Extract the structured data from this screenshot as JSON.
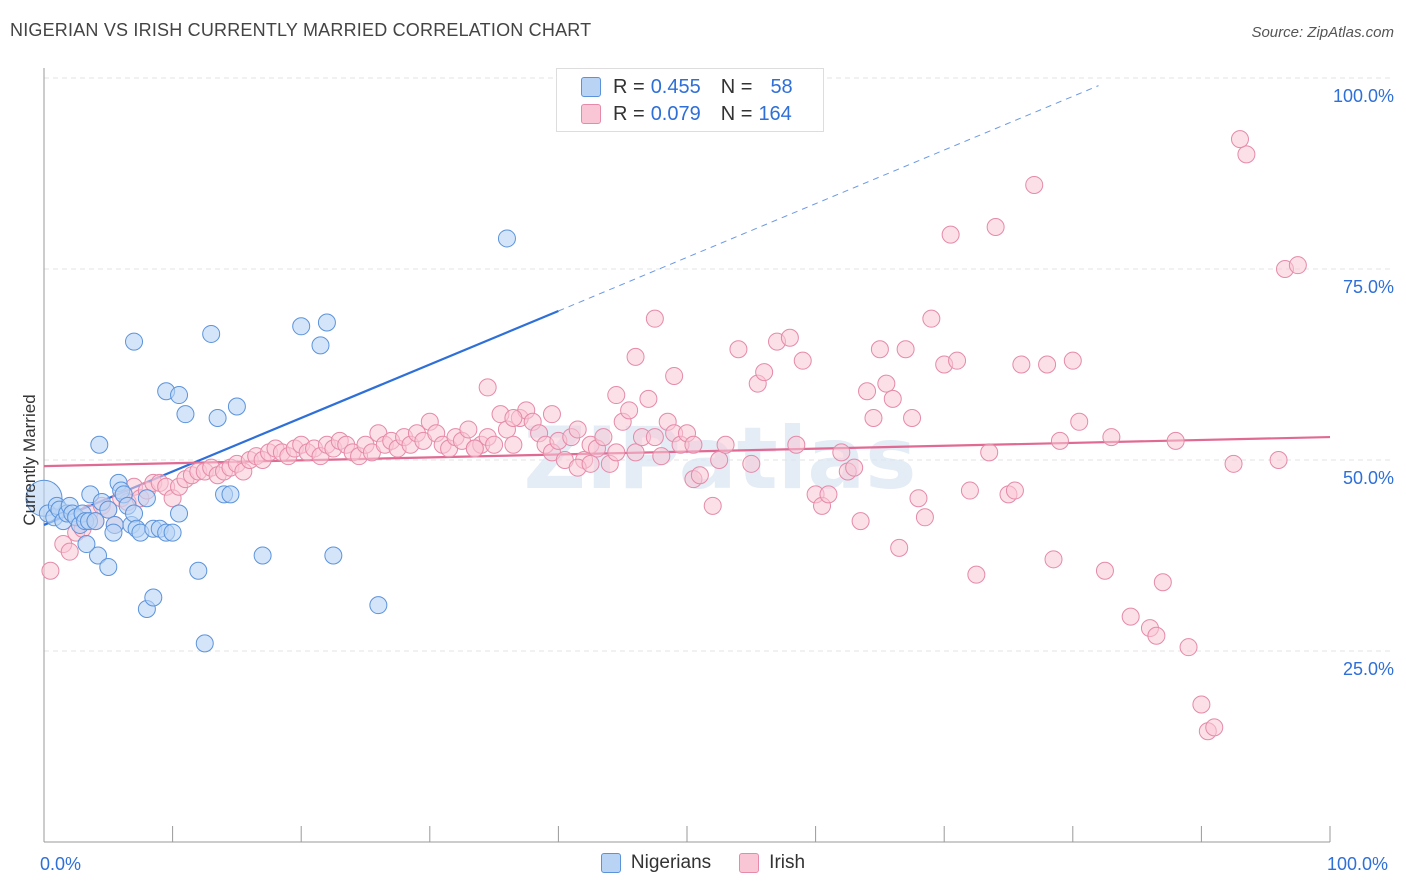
{
  "title": "NIGERIAN VS IRISH CURRENTLY MARRIED CORRELATION CHART",
  "source": "Source: ZipAtlas.com",
  "colors": {
    "nigerians_fill": "#b9d3f5",
    "nigerians_stroke": "#5b93db",
    "nigerians_line": "#2e6fd8",
    "irish_fill": "#f9c6d5",
    "irish_stroke": "#e58aa8",
    "irish_line": "#e06a93",
    "accent_text": "#2e6fd8"
  },
  "legend_top": [
    {
      "r_label": "R =",
      "r_value": "0.455",
      "n_label": "N =",
      "n_value": "58"
    },
    {
      "r_label": "R =",
      "r_value": "0.079",
      "n_label": "N =",
      "n_value": "164"
    }
  ],
  "chart_data": {
    "type": "scatter",
    "title": "NIGERIAN VS IRISH CURRENTLY MARRIED CORRELATION CHART",
    "xlabel": "",
    "ylabel": "Currently Married",
    "xlim": [
      0,
      100
    ],
    "ylim": [
      0,
      100
    ],
    "x_tick_labels": [
      "0.0%",
      "100.0%"
    ],
    "y_tick_labels": [
      "25.0%",
      "50.0%",
      "75.0%",
      "100.0%"
    ],
    "y_ticks": [
      25,
      50,
      75,
      100
    ],
    "grid": true,
    "legend_placement": "bottom",
    "watermark": "ZIPatlas",
    "series": [
      {
        "name": "Nigerians",
        "R": 0.455,
        "N": 58,
        "trend": {
          "x": [
            0,
            40
          ],
          "y": [
            41.5,
            69.5
          ],
          "extended_to": [
            82,
            99
          ]
        },
        "points": [
          [
            0,
            45
          ],
          [
            0.3,
            43
          ],
          [
            0.8,
            42.5
          ],
          [
            1.0,
            44
          ],
          [
            1.2,
            43.5
          ],
          [
            1.5,
            42
          ],
          [
            1.8,
            43
          ],
          [
            2.0,
            44
          ],
          [
            2.2,
            43
          ],
          [
            2.5,
            42.5
          ],
          [
            2.8,
            41.5
          ],
          [
            3.0,
            43
          ],
          [
            3.2,
            42
          ],
          [
            3.5,
            42
          ],
          [
            3.6,
            45.5
          ],
          [
            4.0,
            42
          ],
          [
            4.2,
            37.5
          ],
          [
            4.5,
            44.5
          ],
          [
            5.0,
            43.5
          ],
          [
            5.5,
            41.5
          ],
          [
            3.3,
            39
          ],
          [
            4.3,
            52
          ],
          [
            5.0,
            36
          ],
          [
            5.4,
            40.5
          ],
          [
            5.8,
            47
          ],
          [
            6.0,
            46
          ],
          [
            6.2,
            45.5
          ],
          [
            6.5,
            44
          ],
          [
            6.8,
            41.5
          ],
          [
            7.0,
            43
          ],
          [
            7.2,
            41
          ],
          [
            7.5,
            40.5
          ],
          [
            8.0,
            45
          ],
          [
            8.5,
            41
          ],
          [
            9.0,
            41
          ],
          [
            9.5,
            40.5
          ],
          [
            10.0,
            40.5
          ],
          [
            10.5,
            43
          ],
          [
            8.0,
            30.5
          ],
          [
            8.5,
            32
          ],
          [
            9.5,
            59
          ],
          [
            10.5,
            58.5
          ],
          [
            11.0,
            56
          ],
          [
            12.0,
            35.5
          ],
          [
            12.5,
            26
          ],
          [
            13.0,
            66.5
          ],
          [
            13.5,
            55.5
          ],
          [
            14.0,
            45.5
          ],
          [
            14.5,
            45.5
          ],
          [
            15.0,
            57
          ],
          [
            17.0,
            37.5
          ],
          [
            20.0,
            67.5
          ],
          [
            21.5,
            65
          ],
          [
            22.0,
            68
          ],
          [
            22.5,
            37.5
          ],
          [
            26.0,
            31
          ],
          [
            36.0,
            79
          ],
          [
            7.0,
            65.5
          ]
        ]
      },
      {
        "name": "Irish",
        "R": 0.079,
        "N": 164,
        "trend": {
          "x": [
            0,
            100
          ],
          "y": [
            49.2,
            53
          ]
        },
        "points": [
          [
            0.5,
            35.5
          ],
          [
            1.5,
            39
          ],
          [
            2.0,
            38
          ],
          [
            2.5,
            40.5
          ],
          [
            3.0,
            41
          ],
          [
            3.5,
            43
          ],
          [
            4.0,
            42
          ],
          [
            4.5,
            44
          ],
          [
            5.0,
            43.5
          ],
          [
            5.5,
            41.5
          ],
          [
            6.0,
            45
          ],
          [
            6.5,
            44.5
          ],
          [
            7.0,
            46.5
          ],
          [
            7.5,
            45
          ],
          [
            8.0,
            46
          ],
          [
            8.5,
            47
          ],
          [
            9.0,
            47
          ],
          [
            9.5,
            46.5
          ],
          [
            10.0,
            45
          ],
          [
            10.5,
            46.5
          ],
          [
            11.0,
            47.5
          ],
          [
            11.5,
            48
          ],
          [
            12.0,
            48.5
          ],
          [
            12.5,
            48.5
          ],
          [
            13.0,
            49
          ],
          [
            13.5,
            48
          ],
          [
            14.0,
            48.5
          ],
          [
            14.5,
            49
          ],
          [
            15.0,
            49.5
          ],
          [
            15.5,
            48.5
          ],
          [
            16.0,
            50
          ],
          [
            16.5,
            50.5
          ],
          [
            17.0,
            50
          ],
          [
            17.5,
            51
          ],
          [
            18.0,
            51.5
          ],
          [
            18.5,
            51
          ],
          [
            19.0,
            50.5
          ],
          [
            19.5,
            51.5
          ],
          [
            20.0,
            52
          ],
          [
            20.5,
            51
          ],
          [
            21.0,
            51.5
          ],
          [
            21.5,
            50.5
          ],
          [
            22.0,
            52
          ],
          [
            22.5,
            51.5
          ],
          [
            23.0,
            52.5
          ],
          [
            23.5,
            52
          ],
          [
            24.0,
            51
          ],
          [
            24.5,
            50.5
          ],
          [
            25.0,
            52
          ],
          [
            25.5,
            51
          ],
          [
            26.0,
            53.5
          ],
          [
            26.5,
            52
          ],
          [
            27.0,
            52.5
          ],
          [
            27.5,
            51.5
          ],
          [
            28.0,
            53
          ],
          [
            28.5,
            52
          ],
          [
            29.0,
            53.5
          ],
          [
            29.5,
            52.5
          ],
          [
            30.0,
            55
          ],
          [
            30.5,
            53.5
          ],
          [
            31.0,
            52
          ],
          [
            31.5,
            51.5
          ],
          [
            32.0,
            53
          ],
          [
            32.5,
            52.5
          ],
          [
            33.0,
            54
          ],
          [
            33.5,
            51.5
          ],
          [
            34.0,
            52
          ],
          [
            34.5,
            53
          ],
          [
            35.0,
            52
          ],
          [
            35.5,
            56
          ],
          [
            36.0,
            54
          ],
          [
            36.5,
            52
          ],
          [
            37.0,
            55.5
          ],
          [
            37.5,
            56.5
          ],
          [
            38.0,
            55
          ],
          [
            38.5,
            53.5
          ],
          [
            39.0,
            52
          ],
          [
            39.5,
            51
          ],
          [
            40.0,
            52.5
          ],
          [
            40.5,
            50
          ],
          [
            41.0,
            53
          ],
          [
            41.5,
            54
          ],
          [
            42.0,
            50
          ],
          [
            42.5,
            52
          ],
          [
            43.0,
            51.5
          ],
          [
            43.5,
            53
          ],
          [
            44.0,
            49.5
          ],
          [
            44.5,
            51
          ],
          [
            45.0,
            55
          ],
          [
            45.5,
            56.5
          ],
          [
            46.0,
            51
          ],
          [
            46.5,
            53
          ],
          [
            47.0,
            58
          ],
          [
            47.5,
            53
          ],
          [
            48.0,
            50.5
          ],
          [
            48.5,
            55
          ],
          [
            49.0,
            53.5
          ],
          [
            49.5,
            52
          ],
          [
            50.0,
            53.5
          ],
          [
            50.5,
            47.5
          ],
          [
            36.5,
            55.5
          ],
          [
            34.5,
            59.5
          ],
          [
            33.5,
            51.5
          ],
          [
            39.5,
            56
          ],
          [
            41.5,
            49
          ],
          [
            42.5,
            49.5
          ],
          [
            44.5,
            58.5
          ],
          [
            46.0,
            63.5
          ],
          [
            47.5,
            68.5
          ],
          [
            49.0,
            61
          ],
          [
            50.5,
            52
          ],
          [
            51.0,
            48
          ],
          [
            52.0,
            44
          ],
          [
            52.5,
            50
          ],
          [
            53.0,
            52
          ],
          [
            54.0,
            64.5
          ],
          [
            55.0,
            49.5
          ],
          [
            55.5,
            60
          ],
          [
            56.0,
            61.5
          ],
          [
            57.0,
            65.5
          ],
          [
            58.0,
            66
          ],
          [
            58.5,
            52
          ],
          [
            59.0,
            63
          ],
          [
            60.0,
            45.5
          ],
          [
            60.5,
            44
          ],
          [
            61.0,
            45.5
          ],
          [
            62.0,
            51
          ],
          [
            62.5,
            48.5
          ],
          [
            63.0,
            49
          ],
          [
            63.5,
            42
          ],
          [
            64.0,
            59
          ],
          [
            64.5,
            55.5
          ],
          [
            65.0,
            64.5
          ],
          [
            65.5,
            60
          ],
          [
            66.0,
            58
          ],
          [
            66.5,
            38.5
          ],
          [
            67.0,
            64.5
          ],
          [
            67.5,
            55.5
          ],
          [
            68.0,
            45
          ],
          [
            68.5,
            42.5
          ],
          [
            69.0,
            68.5
          ],
          [
            70.0,
            62.5
          ],
          [
            70.5,
            79.5
          ],
          [
            71.0,
            63
          ],
          [
            72.0,
            46
          ],
          [
            72.5,
            35
          ],
          [
            73.5,
            51
          ],
          [
            74.0,
            80.5
          ],
          [
            75.0,
            45.5
          ],
          [
            75.5,
            46
          ],
          [
            76.0,
            62.5
          ],
          [
            77.0,
            86
          ],
          [
            78.0,
            62.5
          ],
          [
            78.5,
            37
          ],
          [
            79.0,
            52.5
          ],
          [
            80.0,
            63
          ],
          [
            80.5,
            55
          ],
          [
            82.5,
            35.5
          ],
          [
            83.0,
            53
          ],
          [
            84.5,
            29.5
          ],
          [
            86.0,
            28
          ],
          [
            86.5,
            27
          ],
          [
            87.0,
            34
          ],
          [
            88.0,
            52.5
          ],
          [
            89.0,
            25.5
          ],
          [
            90.0,
            18
          ],
          [
            90.5,
            14.5
          ],
          [
            91.0,
            15
          ],
          [
            92.5,
            49.5
          ],
          [
            93.5,
            90
          ],
          [
            96.5,
            75
          ],
          [
            93.0,
            92
          ],
          [
            97.5,
            75.5
          ],
          [
            96.0,
            50
          ]
        ]
      }
    ]
  },
  "legend_bottom": [
    "Nigerians",
    "Irish"
  ]
}
